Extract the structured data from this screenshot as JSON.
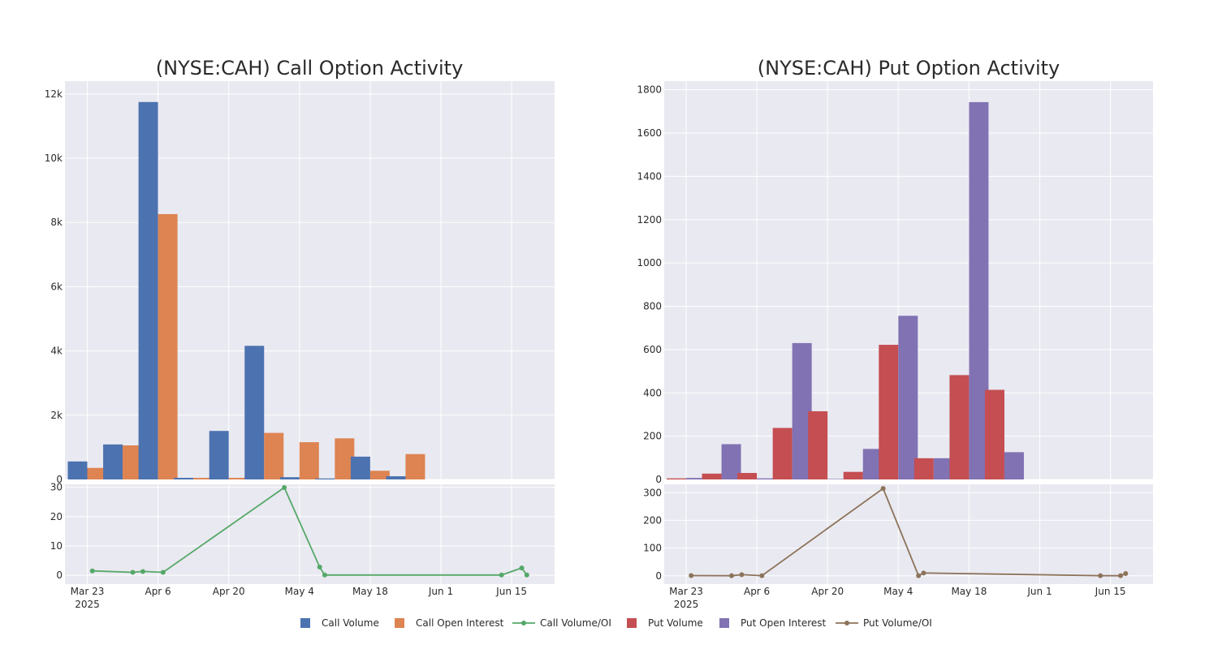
{
  "chart_data": [
    {
      "type": "bar",
      "title": "(NYSE:CAH) Call Option Activity",
      "x_ticks": [
        "Mar 23",
        "Apr 6",
        "Apr 20",
        "May 4",
        "May 18",
        "Jun 1",
        "Jun 15"
      ],
      "x_tick_year": "2025",
      "bar_dates": [
        "2025-03-23",
        "2025-03-30",
        "2025-04-06",
        "2025-04-13",
        "2025-04-20",
        "2025-04-27",
        "2025-05-04",
        "2025-05-11",
        "2025-05-18",
        "2025-05-25"
      ],
      "series": [
        {
          "name": "Call Volume",
          "color": "#4c72b0",
          "values": [
            560,
            1090,
            11750,
            50,
            1510,
            4160,
            70,
            30,
            710,
            100
          ]
        },
        {
          "name": "Call Open Interest",
          "color": "#dd8452",
          "values": [
            360,
            1060,
            8260,
            50,
            50,
            1450,
            1160,
            1280,
            270,
            790
          ]
        }
      ],
      "ylim": [
        0,
        12400
      ],
      "y_ticks": [
        0,
        2000,
        4000,
        6000,
        8000,
        10000,
        12000
      ],
      "y_tick_labels": [
        "0",
        "2k",
        "4k",
        "6k",
        "8k",
        "10k",
        "12k"
      ],
      "ratio": {
        "type": "line",
        "name": "Call Volume/OI",
        "color": "#55a868",
        "x": [
          "2025-03-24",
          "2025-04-01",
          "2025-04-03",
          "2025-04-07",
          "2025-05-01",
          "2025-05-08",
          "2025-05-09",
          "2025-06-13",
          "2025-06-17",
          "2025-06-18"
        ],
        "y": [
          1.5,
          1.0,
          1.3,
          1.0,
          29.9,
          2.8,
          0.1,
          0.1,
          2.5,
          0.1
        ],
        "ylim": [
          -3,
          31
        ],
        "y_ticks": [
          0,
          10,
          20,
          30
        ]
      }
    },
    {
      "type": "bar",
      "title": "(NYSE:CAH) Put Option Activity",
      "x_ticks": [
        "Mar 23",
        "Apr 6",
        "Apr 20",
        "May 4",
        "May 18",
        "Jun 1",
        "Jun 15"
      ],
      "x_tick_year": "2025",
      "bar_dates": [
        "2025-03-23",
        "2025-03-30",
        "2025-04-06",
        "2025-04-13",
        "2025-04-20",
        "2025-04-27",
        "2025-05-04",
        "2025-05-11",
        "2025-05-18",
        "2025-05-25"
      ],
      "series": [
        {
          "name": "Put Volume",
          "color": "#c44e52",
          "values": [
            5,
            27,
            30,
            238,
            315,
            35,
            622,
            98,
            482,
            414
          ]
        },
        {
          "name": "Put Open Interest",
          "color": "#8172b3",
          "values": [
            7,
            163,
            5,
            630,
            2,
            141,
            756,
            98,
            1743,
            126
          ]
        }
      ],
      "ylim": [
        0,
        1840
      ],
      "y_ticks": [
        0,
        200,
        400,
        600,
        800,
        1000,
        1200,
        1400,
        1600,
        1800
      ],
      "y_tick_labels": [
        "0",
        "200",
        "400",
        "600",
        "800",
        "1000",
        "1200",
        "1400",
        "1600",
        "1800"
      ],
      "ratio": {
        "type": "line",
        "name": "Put Volume/OI",
        "color": "#8c735a",
        "x": [
          "2025-03-24",
          "2025-04-01",
          "2025-04-03",
          "2025-04-07",
          "2025-05-01",
          "2025-05-08",
          "2025-05-09",
          "2025-06-13",
          "2025-06-17",
          "2025-06-18"
        ],
        "y": [
          0.7,
          0.2,
          4.0,
          0.4,
          315,
          0.3,
          10,
          0.5,
          0.2,
          8.0
        ],
        "ylim": [
          -30,
          330
        ],
        "y_ticks": [
          0,
          100,
          200,
          300
        ]
      }
    }
  ],
  "legend": [
    {
      "label": "Call Volume",
      "kind": "square",
      "color": "#4c72b0"
    },
    {
      "label": "Call Open Interest",
      "kind": "square",
      "color": "#dd8452"
    },
    {
      "label": "Call Volume/OI",
      "kind": "line",
      "color": "#55a868"
    },
    {
      "label": "Put Volume",
      "kind": "square",
      "color": "#c44e52"
    },
    {
      "label": "Put Open Interest",
      "kind": "square",
      "color": "#8172b3"
    },
    {
      "label": "Put Volume/OI",
      "kind": "line",
      "color": "#8c735a"
    }
  ]
}
